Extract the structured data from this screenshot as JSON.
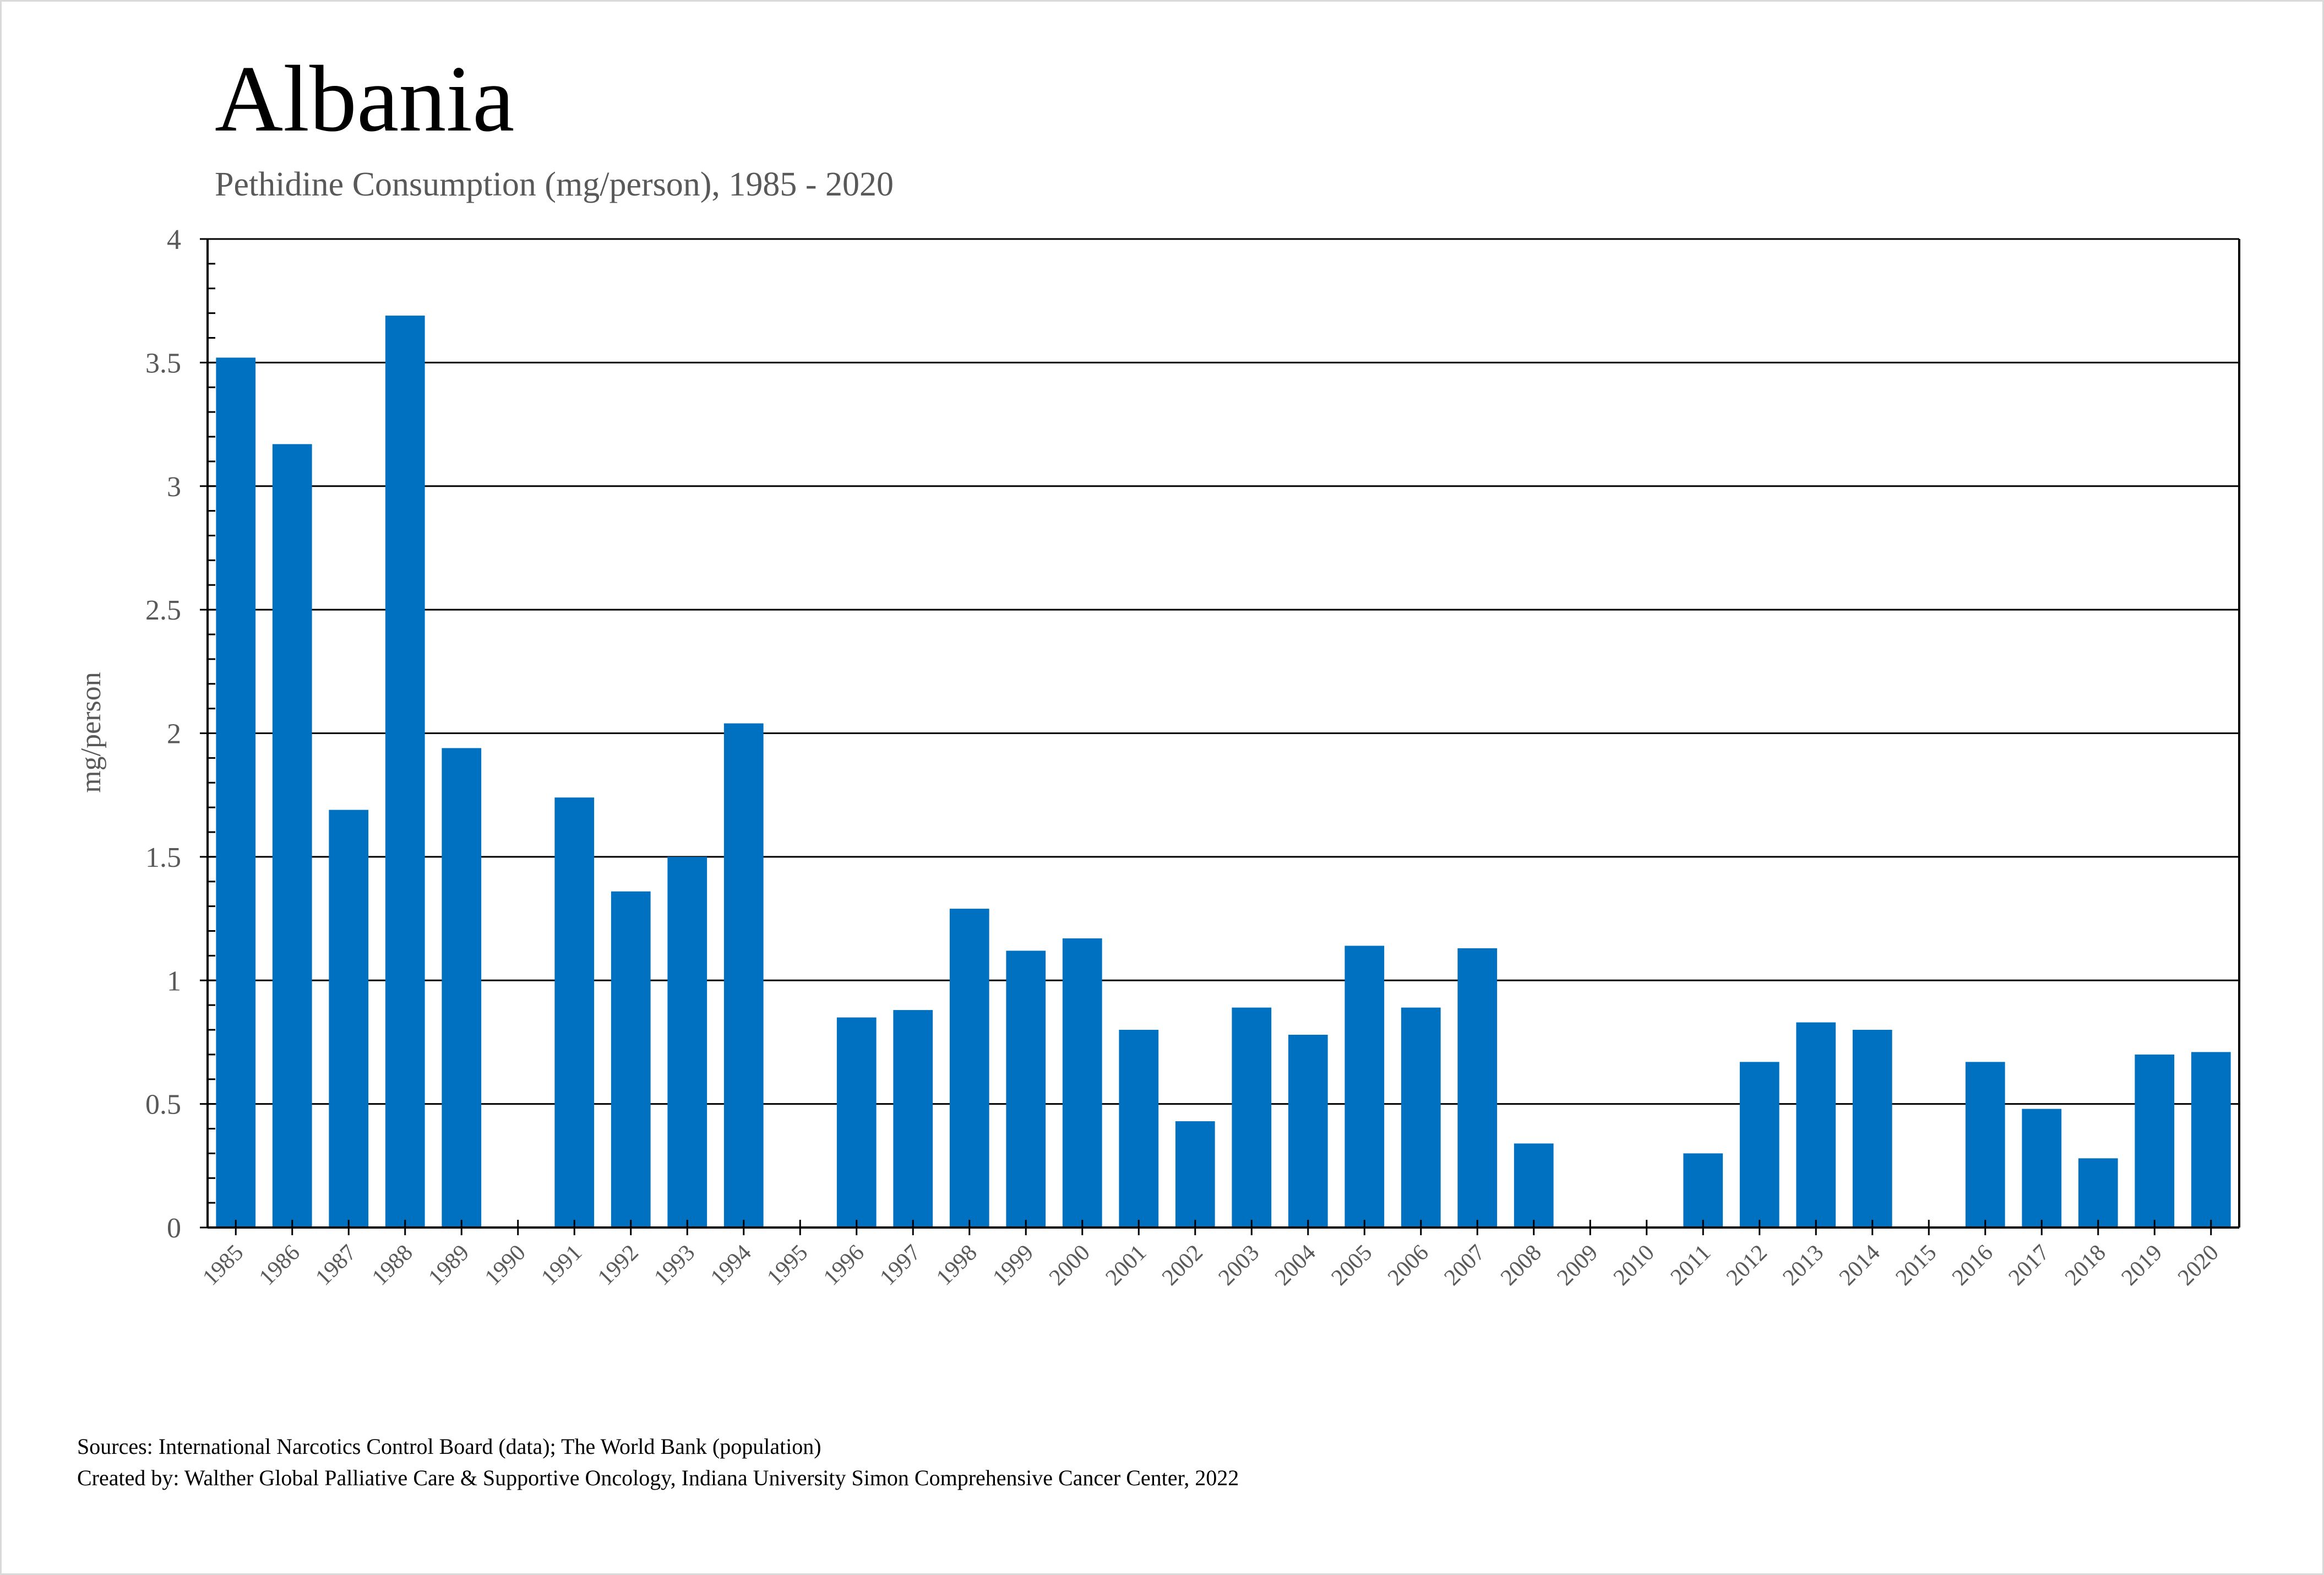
{
  "chart_data": {
    "type": "bar",
    "title": "Albania",
    "subtitle": "Pethidine Consumption (mg/person), 1985 - 2020",
    "xlabel": "",
    "ylabel": "mg/person",
    "ylim": [
      0,
      4
    ],
    "yticks": [
      "0",
      "0.5",
      "1",
      "1.5",
      "2",
      "2.5",
      "3",
      "3.5",
      "4"
    ],
    "ytick_values": [
      0,
      0.5,
      1,
      1.5,
      2,
      2.5,
      3,
      3.5,
      4
    ],
    "grid": true,
    "legend": "none",
    "bar_color": "#0070C0",
    "categories": [
      "1985",
      "1986",
      "1987",
      "1988",
      "1989",
      "1990",
      "1991",
      "1992",
      "1993",
      "1994",
      "1995",
      "1996",
      "1997",
      "1998",
      "1999",
      "2000",
      "2001",
      "2002",
      "2003",
      "2004",
      "2005",
      "2006",
      "2007",
      "2008",
      "2009",
      "2010",
      "2011",
      "2012",
      "2013",
      "2014",
      "2015",
      "2016",
      "2017",
      "2018",
      "2019",
      "2020"
    ],
    "values": [
      3.52,
      3.17,
      1.69,
      3.69,
      1.94,
      0,
      1.74,
      1.36,
      1.5,
      2.04,
      0,
      0.85,
      0.88,
      1.29,
      1.12,
      1.17,
      0.8,
      0.43,
      0.89,
      0.78,
      1.14,
      0.89,
      1.13,
      0.34,
      0,
      0,
      0.3,
      0.67,
      0.83,
      0.8,
      0,
      0.67,
      0.48,
      0.28,
      0.7,
      0.71
    ]
  },
  "footer": {
    "sources": "Sources: International Narcotics Control Board (data); The World Bank (population)",
    "created_by": "Created by: Walther Global Palliative Care & Supportive Oncology, Indiana University Simon Comprehensive Cancer Center, 2022"
  }
}
